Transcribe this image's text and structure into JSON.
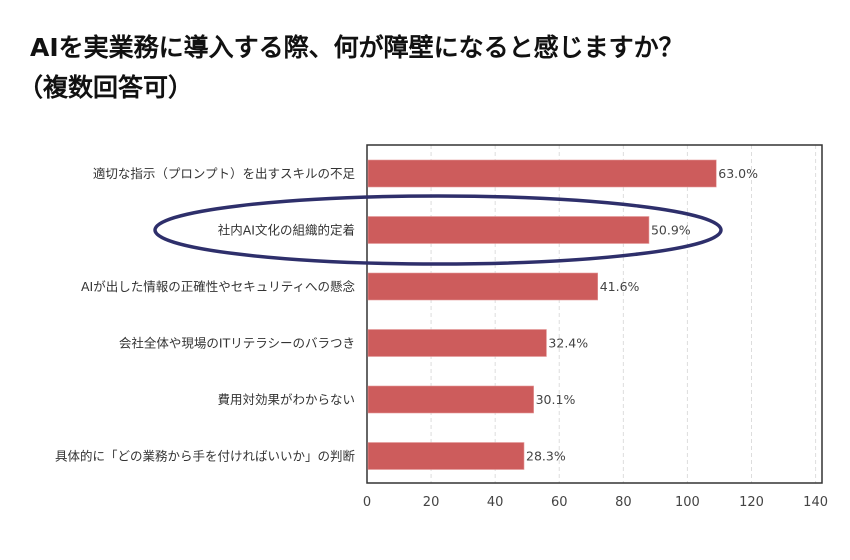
{
  "chart_data": {
    "type": "bar",
    "orientation": "horizontal",
    "title_lines": [
      "AIを実業務に導入する際、何が障壁になると感じますか？",
      "（複数回答可）"
    ],
    "categories": [
      "適切な指示（プロンプト）を出すスキルの不足",
      "社内AI文化の組織的定着",
      "AIが出した情報の正確性やセキュリティへの懸念",
      "会社全体や現場のITリテラシーのバラつき",
      "費用対効果がわからない",
      "具体的に「どの業務から手を付ければいいか」の判断"
    ],
    "values": [
      109,
      88,
      72,
      56,
      52,
      49
    ],
    "data_labels": [
      "63.0%",
      "50.9%",
      "41.6%",
      "32.4%",
      "30.1%",
      "28.3%"
    ],
    "xlim": [
      0,
      142
    ],
    "xticks": [
      "0",
      "20",
      "40",
      "60",
      "80",
      "100",
      "120",
      "140"
    ],
    "grid": "vertical dashed",
    "highlight": {
      "category_index": 1,
      "shape": "ellipse",
      "color": "#2e2f6b"
    },
    "bar_color": "#cd5c5c"
  }
}
